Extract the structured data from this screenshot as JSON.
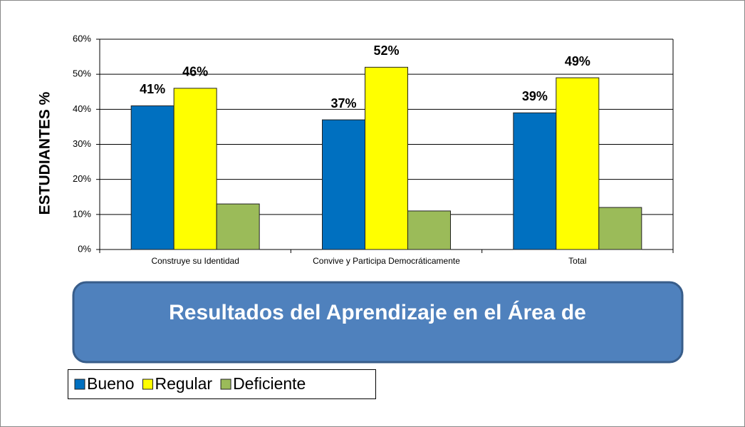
{
  "chart_data": {
    "type": "bar",
    "annotation": "Resultados del Aprendizaje en el Área de",
    "y_label": "ESTUDIANTES  %",
    "categories": [
      "Construye su Identidad",
      "Convive y Participa Democráticamente",
      "Total"
    ],
    "series": [
      {
        "name": "Bueno",
        "color": "#0070c0",
        "values": [
          41,
          37,
          39
        ],
        "value_labels": [
          "41%",
          "37%",
          "39%"
        ]
      },
      {
        "name": "Regular",
        "color": "#ffff00",
        "values": [
          46,
          52,
          49
        ],
        "value_labels": [
          "46%",
          "52%",
          "49%"
        ]
      },
      {
        "name": "Deficiente",
        "color": "#9bbb59",
        "values": [
          13,
          11,
          12
        ]
      }
    ],
    "ylim": [
      0,
      60
    ],
    "yticks": [
      {
        "value": 0,
        "label": "0%"
      },
      {
        "value": 10,
        "label": "10%"
      },
      {
        "value": 20,
        "label": "20%"
      },
      {
        "value": 30,
        "label": "30%"
      },
      {
        "value": 40,
        "label": "40%"
      },
      {
        "value": 50,
        "label": "50%"
      },
      {
        "value": 60,
        "label": "60%"
      }
    ],
    "grid": true,
    "legend": "bottom-left"
  }
}
